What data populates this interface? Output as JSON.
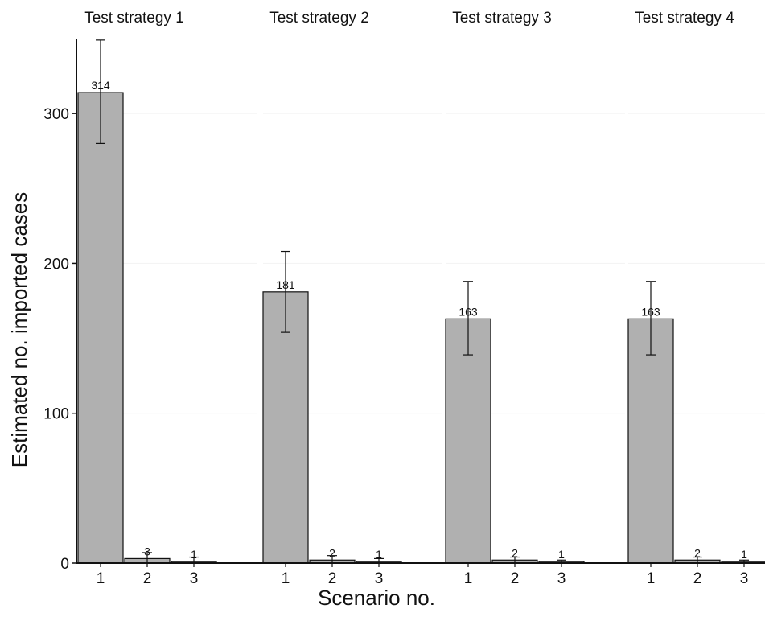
{
  "chart_data": {
    "type": "bar",
    "facets": [
      "Test strategy 1",
      "Test strategy 2",
      "Test strategy 3",
      "Test strategy 4"
    ],
    "categories": [
      "1",
      "2",
      "3"
    ],
    "series": [
      {
        "facet": "Test strategy 1",
        "values": [
          314,
          3,
          1
        ],
        "error_low": [
          280,
          0,
          0
        ],
        "error_high": [
          349,
          7,
          4
        ]
      },
      {
        "facet": "Test strategy 2",
        "values": [
          181,
          2,
          1
        ],
        "error_low": [
          154,
          0,
          0
        ],
        "error_high": [
          208,
          5,
          3
        ]
      },
      {
        "facet": "Test strategy 3",
        "values": [
          163,
          2,
          1
        ],
        "error_low": [
          139,
          0,
          0
        ],
        "error_high": [
          188,
          4,
          2
        ]
      },
      {
        "facet": "Test strategy 4",
        "values": [
          163,
          2,
          1
        ],
        "error_low": [
          139,
          0,
          0
        ],
        "error_high": [
          188,
          4,
          2
        ]
      }
    ],
    "xlabel": "Scenario no.",
    "ylabel": "Estimated no. imported cases",
    "yticks": [
      0,
      100,
      200,
      300
    ],
    "ylim": [
      0,
      350
    ],
    "grid": true,
    "bar_color": "#b0b0b0",
    "bar_edge_color": "#111111",
    "grid_color": "#f2f2f2"
  }
}
